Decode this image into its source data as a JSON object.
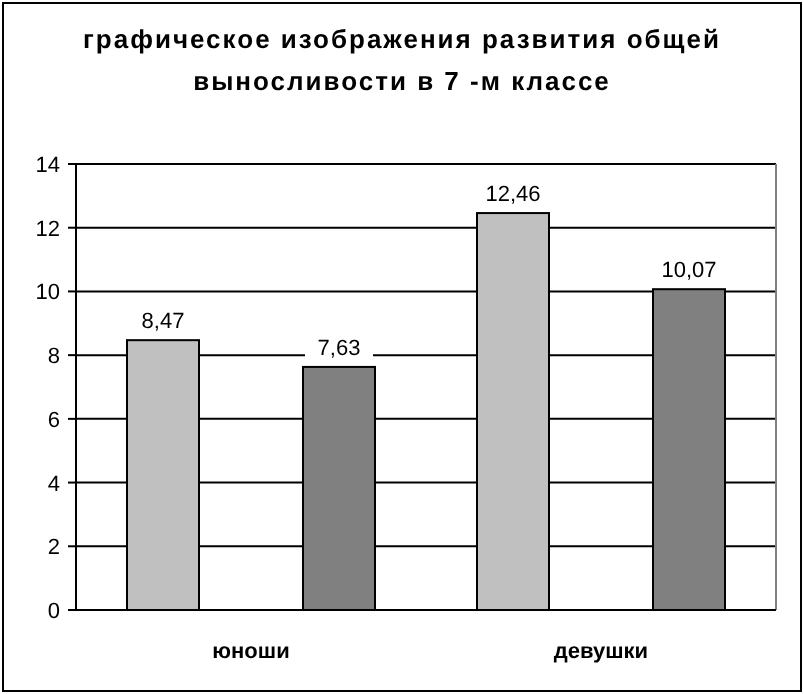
{
  "chart_data": {
    "type": "bar",
    "title": "графическое изображения развития общей выносливости в 7 -м классе",
    "categories": [
      "юноши",
      "девушки"
    ],
    "series": [
      {
        "color": "#c0c0c0",
        "values": [
          8.47,
          12.46
        ],
        "value_labels": [
          "8,47",
          "12,46"
        ]
      },
      {
        "color": "#808080",
        "values": [
          7.63,
          10.07
        ],
        "value_labels": [
          "7,63",
          "10,07"
        ]
      }
    ],
    "ylim": [
      0,
      14
    ],
    "yticks": [
      0,
      2,
      4,
      6,
      8,
      10,
      12,
      14
    ],
    "grid": "y"
  }
}
